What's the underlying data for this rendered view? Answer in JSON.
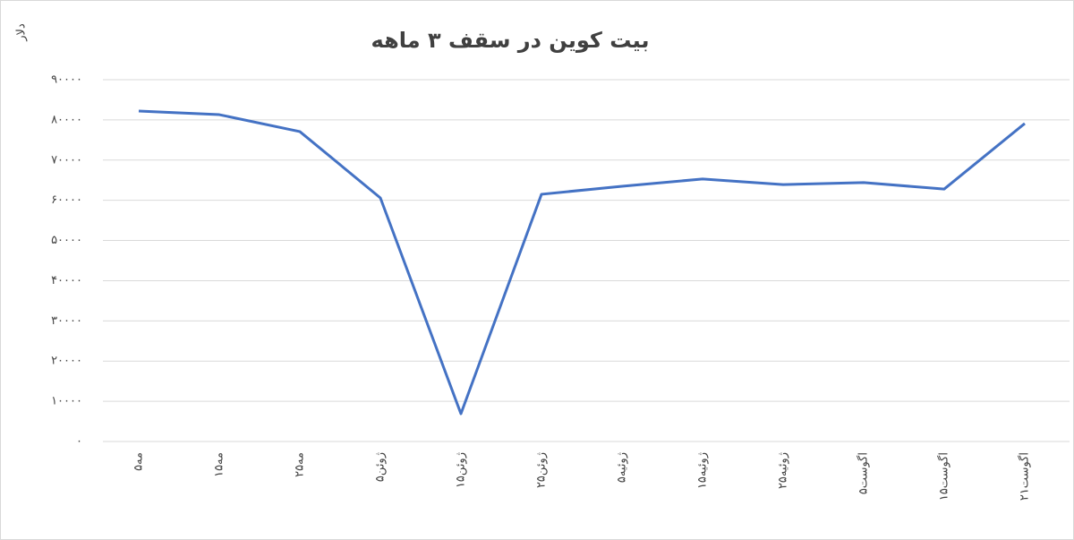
{
  "chart_data": {
    "type": "line",
    "title": "بیت کوین در سقف ۳ ماهه",
    "y_label": "دلار",
    "categories": [
      "۵مه",
      "۱۵مه",
      "۲۵مه",
      "۵ژوئن",
      "۱۵ژوئن",
      "۲۵ژوئن",
      "۵ژوئیه",
      "۱۵ژوئیه",
      "۲۵ژوئیه",
      "۵اگوست",
      "۱۵اگوست",
      "۲۱اگوست"
    ],
    "series": [
      {
        "name": "بیت کوین",
        "color": "#4472c4",
        "values": [
          82200,
          81300,
          77100,
          60600,
          6900,
          61500,
          63500,
          65300,
          63900,
          64400,
          62800,
          79100
        ]
      }
    ],
    "ylim": [
      0,
      90000
    ],
    "yticks": [
      {
        "value": 0,
        "label": "۰"
      },
      {
        "value": 10000,
        "label": "۱۰۰۰۰"
      },
      {
        "value": 20000,
        "label": "۲۰۰۰۰"
      },
      {
        "value": 30000,
        "label": "۳۰۰۰۰"
      },
      {
        "value": 40000,
        "label": "۴۰۰۰۰"
      },
      {
        "value": 50000,
        "label": "۵۰۰۰۰"
      },
      {
        "value": 60000,
        "label": "۶۰۰۰۰"
      },
      {
        "value": 70000,
        "label": "۷۰۰۰۰"
      },
      {
        "value": 80000,
        "label": "۸۰۰۰۰"
      },
      {
        "value": 90000,
        "label": "۹۰۰۰۰"
      }
    ],
    "grid": true
  }
}
